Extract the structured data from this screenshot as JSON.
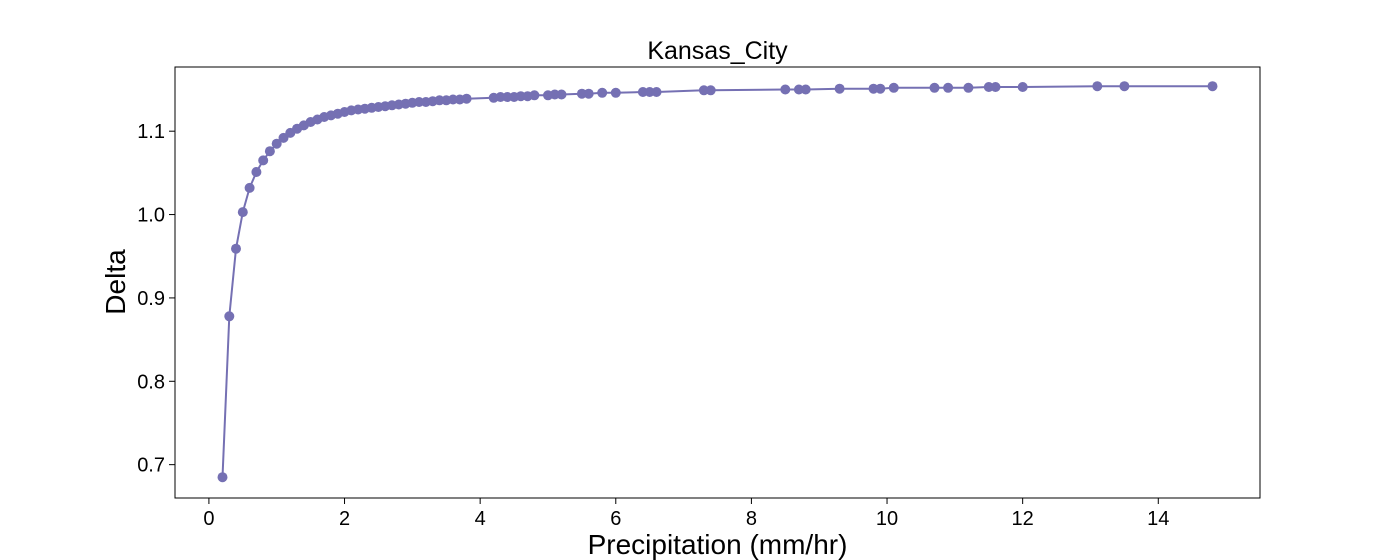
{
  "chart_data": {
    "type": "line",
    "title": "Kansas_City",
    "xlabel": "Precipitation (mm/hr)",
    "ylabel": "Delta",
    "xlim": [
      -0.5,
      15.5
    ],
    "ylim": [
      0.66,
      1.177
    ],
    "xticks": [
      0,
      2,
      4,
      6,
      8,
      10,
      12,
      14
    ],
    "yticks": [
      0.7,
      0.8,
      0.9,
      1.0,
      1.1
    ],
    "ytick_labels": [
      "0.7",
      "0.8",
      "0.9",
      "1.0",
      "1.1"
    ],
    "grid": false,
    "marker": "circle",
    "series_color": "#7570b3",
    "series": [
      {
        "x": [
          0.2,
          0.3,
          0.4,
          0.5,
          0.6,
          0.7,
          0.8,
          0.9,
          1.0,
          1.1,
          1.2,
          1.3,
          1.4,
          1.5,
          1.6,
          1.7,
          1.8,
          1.9,
          2.0,
          2.1,
          2.2,
          2.3,
          2.4,
          2.5,
          2.6,
          2.7,
          2.8,
          2.9,
          3.0,
          3.1,
          3.2,
          3.3,
          3.4,
          3.5,
          3.6,
          3.7,
          3.8,
          4.2,
          4.3,
          4.4,
          4.5,
          4.6,
          4.7,
          4.8,
          5.0,
          5.1,
          5.2,
          5.5,
          5.6,
          5.8,
          6.0,
          6.4,
          6.5,
          6.6,
          7.3,
          7.4,
          8.5,
          8.7,
          8.8,
          9.3,
          9.8,
          9.9,
          10.1,
          10.7,
          10.9,
          11.2,
          11.5,
          11.6,
          12.0,
          13.1,
          13.5,
          14.8
        ],
        "y": [
          0.685,
          0.878,
          0.959,
          1.003,
          1.032,
          1.051,
          1.065,
          1.076,
          1.085,
          1.092,
          1.098,
          1.103,
          1.107,
          1.111,
          1.114,
          1.117,
          1.119,
          1.121,
          1.123,
          1.125,
          1.126,
          1.127,
          1.128,
          1.129,
          1.13,
          1.131,
          1.132,
          1.133,
          1.134,
          1.135,
          1.135,
          1.136,
          1.137,
          1.137,
          1.138,
          1.138,
          1.139,
          1.14,
          1.141,
          1.141,
          1.141,
          1.142,
          1.142,
          1.143,
          1.143,
          1.144,
          1.144,
          1.145,
          1.145,
          1.146,
          1.146,
          1.147,
          1.147,
          1.147,
          1.149,
          1.149,
          1.15,
          1.15,
          1.15,
          1.151,
          1.151,
          1.151,
          1.152,
          1.152,
          1.152,
          1.152,
          1.153,
          1.153,
          1.153,
          1.154,
          1.154,
          1.154
        ]
      }
    ]
  }
}
